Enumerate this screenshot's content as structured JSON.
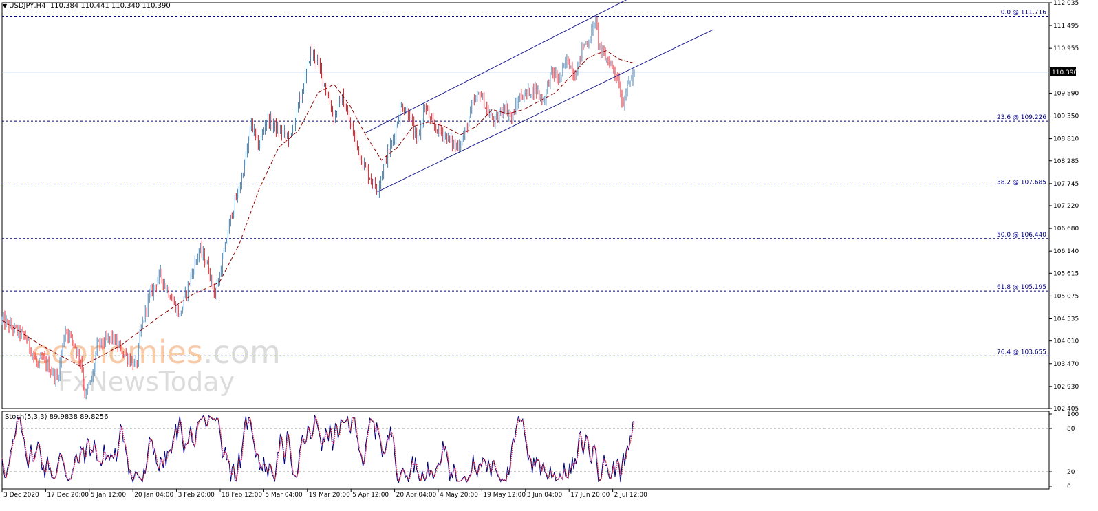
{
  "header": {
    "symbol": "USDJPY,H4",
    "ohlc": "110.384 110.441 110.340 110.390"
  },
  "watermark": {
    "line1_a": "economies",
    "line1_b": ".com",
    "line2": "FxNewsToday"
  },
  "colors": {
    "bull": "#4682b4",
    "bear": "#e8202a",
    "ma": "#8b0000",
    "channel": "#1c1c8c",
    "fib": "#000080",
    "bid_line": "#b0c4de",
    "stoch_main": "#000080",
    "stoch_signal": "#e8202a"
  },
  "chart_data": [
    {
      "type": "candlestick",
      "symbol": "USDJPY",
      "timeframe": "H4",
      "ylim": [
        102.405,
        112.035
      ],
      "y_ticks": [
        "112.035",
        "111.495",
        "110.955",
        "110.390",
        "109.890",
        "109.350",
        "108.810",
        "108.285",
        "107.745",
        "107.220",
        "106.680",
        "106.140",
        "105.615",
        "105.075",
        "104.535",
        "104.010",
        "103.470",
        "102.930",
        "102.405"
      ],
      "current_price": "110.390",
      "x_ticks": [
        "3 Dec 2020",
        "17 Dec 20:00",
        "5 Jan 12:00",
        "20 Jan 04:00",
        "3 Feb 20:00",
        "18 Feb 12:00",
        "5 Mar 04:00",
        "19 Mar 20:00",
        "5 Apr 12:00",
        "20 Apr 04:00",
        "4 May 20:00",
        "19 May 12:00",
        "3 Jun 04:00",
        "17 Jun 20:00",
        "2 Jul 12:00"
      ],
      "price_path": [
        [
          0,
          104.5
        ],
        [
          6,
          104.1
        ],
        [
          9,
          103.4
        ],
        [
          10,
          103.6
        ],
        [
          14,
          103.1
        ],
        [
          16,
          104.3
        ],
        [
          18,
          104.0
        ],
        [
          20,
          103.5
        ],
        [
          21,
          102.7
        ],
        [
          23,
          103.2
        ],
        [
          24,
          103.9
        ],
        [
          28,
          104.1
        ],
        [
          30,
          103.8
        ],
        [
          34,
          103.4
        ],
        [
          35,
          104.2
        ],
        [
          37,
          105.0
        ],
        [
          40,
          105.6
        ],
        [
          43,
          105.0
        ],
        [
          45,
          104.6
        ],
        [
          47,
          105.3
        ],
        [
          50,
          106.2
        ],
        [
          52,
          105.8
        ],
        [
          54,
          105.1
        ],
        [
          56,
          106.0
        ],
        [
          58,
          107.0
        ],
        [
          60,
          107.6
        ],
        [
          62,
          108.5
        ],
        [
          63,
          109.2
        ],
        [
          65,
          108.6
        ],
        [
          67,
          109.3
        ],
        [
          70,
          109.0
        ],
        [
          73,
          108.8
        ],
        [
          75,
          109.6
        ],
        [
          77,
          110.3
        ],
        [
          78,
          110.9
        ],
        [
          80,
          110.6
        ],
        [
          82,
          110.0
        ],
        [
          84,
          109.3
        ],
        [
          86,
          109.8
        ],
        [
          89,
          108.9
        ],
        [
          91,
          108.3
        ],
        [
          93,
          107.9
        ],
        [
          95,
          107.6
        ],
        [
          97,
          108.3
        ],
        [
          99,
          108.8
        ],
        [
          101,
          109.6
        ],
        [
          103,
          109.4
        ],
        [
          105,
          108.7
        ],
        [
          107,
          109.6
        ],
        [
          109,
          109.1
        ],
        [
          111,
          109.0
        ],
        [
          113,
          108.8
        ],
        [
          115,
          108.6
        ],
        [
          117,
          108.9
        ],
        [
          119,
          109.6
        ],
        [
          121,
          109.9
        ],
        [
          123,
          109.4
        ],
        [
          125,
          109.2
        ],
        [
          127,
          109.6
        ],
        [
          129,
          109.3
        ],
        [
          131,
          109.8
        ],
        [
          133,
          109.9
        ],
        [
          135,
          110.0
        ],
        [
          137,
          109.7
        ],
        [
          139,
          110.4
        ],
        [
          141,
          110.2
        ],
        [
          143,
          110.7
        ],
        [
          145,
          110.3
        ],
        [
          147,
          111.0
        ],
        [
          149,
          111.2
        ],
        [
          150,
          111.7
        ],
        [
          151,
          111.1
        ],
        [
          152,
          110.8
        ],
        [
          154,
          110.6
        ],
        [
          156,
          110.2
        ],
        [
          157,
          109.6
        ],
        [
          158,
          110.0
        ],
        [
          160,
          110.39
        ]
      ],
      "ma_path": [
        [
          0,
          104.5
        ],
        [
          10,
          103.9
        ],
        [
          20,
          103.4
        ],
        [
          30,
          103.9
        ],
        [
          40,
          104.6
        ],
        [
          48,
          105.1
        ],
        [
          55,
          105.4
        ],
        [
          60,
          106.3
        ],
        [
          65,
          107.6
        ],
        [
          70,
          108.6
        ],
        [
          75,
          109.0
        ],
        [
          80,
          109.9
        ],
        [
          84,
          110.1
        ],
        [
          88,
          109.6
        ],
        [
          92,
          108.9
        ],
        [
          96,
          108.3
        ],
        [
          100,
          108.6
        ],
        [
          104,
          109.1
        ],
        [
          108,
          109.2
        ],
        [
          112,
          109.1
        ],
        [
          116,
          108.9
        ],
        [
          120,
          109.1
        ],
        [
          124,
          109.5
        ],
        [
          128,
          109.4
        ],
        [
          132,
          109.5
        ],
        [
          136,
          109.7
        ],
        [
          140,
          109.9
        ],
        [
          144,
          110.3
        ],
        [
          148,
          110.7
        ],
        [
          150,
          110.8
        ],
        [
          153,
          110.9
        ],
        [
          156,
          110.7
        ],
        [
          160,
          110.6
        ]
      ],
      "series": [
        {
          "name": "0.0 @ 111.716",
          "value": 111.716
        },
        {
          "name": "23.6 @ 109.226",
          "value": 109.226
        },
        {
          "name": "38.2 @ 107.685",
          "value": 107.685
        },
        {
          "name": "50.0 @ 106.440",
          "value": 106.44
        },
        {
          "name": "61.8 @ 105.195",
          "value": 105.195
        },
        {
          "name": "76.4 @ 103.655",
          "value": 103.655
        }
      ],
      "channel": {
        "upper": [
          [
            92,
            108.95
          ],
          [
            160,
            112.2
          ]
        ],
        "lower": [
          [
            95,
            107.55
          ],
          [
            160,
            110.5
          ]
        ],
        "lower_extension": [
          [
            160,
            110.5
          ],
          [
            180,
            111.4
          ]
        ]
      }
    },
    {
      "type": "line",
      "title": "Stoch(5,3,3) 89.9838 89.8256",
      "ylim": [
        0,
        100
      ],
      "y_ticks": [
        "100",
        "80",
        "20",
        "0"
      ],
      "levels": [
        80,
        20
      ],
      "series": [
        {
          "name": "main",
          "seed": 7
        },
        {
          "name": "signal",
          "seed": 7
        }
      ]
    }
  ]
}
